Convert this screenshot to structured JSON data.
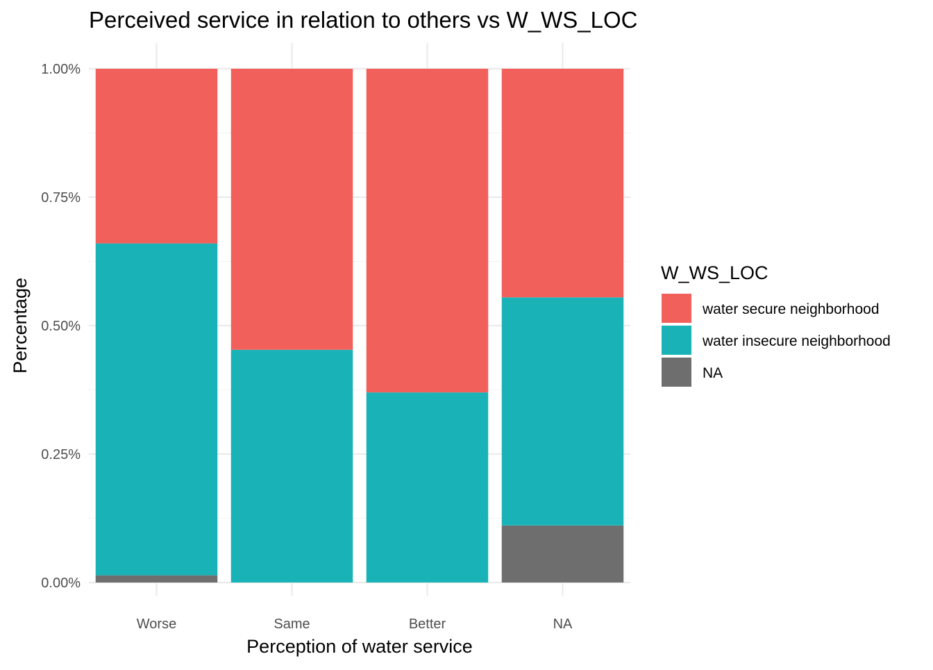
{
  "chart_data": {
    "type": "bar",
    "stacked": true,
    "normalized": true,
    "title": "Perceived service in relation to others vs W_WS_LOC",
    "xlabel": "Perception of water service",
    "ylabel": "Percentage",
    "categories": [
      "Worse",
      "Same",
      "Better",
      "NA"
    ],
    "ylim": [
      0,
      1
    ],
    "y_ticks": [
      0,
      0.25,
      0.5,
      0.75,
      1.0
    ],
    "y_tick_labels": [
      "0.00%",
      "0.25%",
      "0.50%",
      "0.75%",
      "1.00%"
    ],
    "grid": true,
    "legend": {
      "title": "W_WS_LOC",
      "position": "right"
    },
    "series": [
      {
        "name": "NA",
        "color": "#6e6e6e",
        "values": [
          0.014,
          0.0,
          0.0,
          0.111
        ]
      },
      {
        "name": "water insecure neighborhood",
        "color": "#19b3b7",
        "values": [
          0.646,
          0.453,
          0.37,
          0.444
        ]
      },
      {
        "name": "water secure neighborhood",
        "color": "#f2605c",
        "values": [
          0.34,
          0.547,
          0.63,
          0.445
        ]
      }
    ],
    "legend_order": [
      "water secure neighborhood",
      "water insecure neighborhood",
      "NA"
    ]
  }
}
